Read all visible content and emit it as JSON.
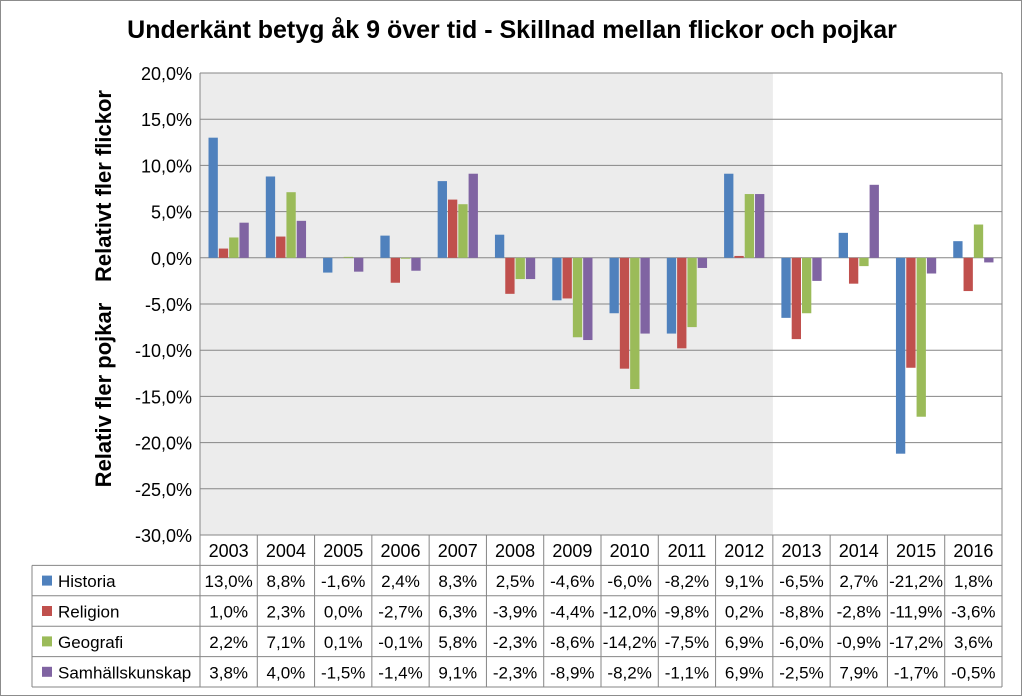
{
  "chart_data": {
    "type": "bar",
    "title": "Underkänt betyg åk 9 över tid - Skillnad mellan flickor och pojkar",
    "ylabel_top": "Relativt fler flickor",
    "ylabel_bottom": "Relativ fler pojkar",
    "ylim": [
      -30,
      20
    ],
    "ytick_step": 5,
    "yticks": [
      "20,0%",
      "15,0%",
      "10,0%",
      "5,0%",
      "0,0%",
      "-5,0%",
      "-10,0%",
      "-15,0%",
      "-20,0%",
      "-25,0%",
      "-30,0%"
    ],
    "categories": [
      "2003",
      "2004",
      "2005",
      "2006",
      "2007",
      "2008",
      "2009",
      "2010",
      "2011",
      "2012",
      "2013",
      "2014",
      "2015",
      "2016"
    ],
    "shaded_categories": [
      "2003",
      "2004",
      "2005",
      "2006",
      "2007",
      "2008",
      "2009",
      "2010",
      "2011",
      "2012"
    ],
    "grid": true,
    "legend": "data-table",
    "series": [
      {
        "name": "Historia",
        "color": "#4f81bd",
        "values": [
          13.0,
          8.8,
          -1.6,
          2.4,
          8.3,
          2.5,
          -4.6,
          -6.0,
          -8.2,
          9.1,
          -6.5,
          2.7,
          -21.2,
          1.8
        ],
        "labels": [
          "13,0%",
          "8,8%",
          "-1,6%",
          "2,4%",
          "8,3%",
          "2,5%",
          "-4,6%",
          "-6,0%",
          "-8,2%",
          "9,1%",
          "-6,5%",
          "2,7%",
          "-21,2%",
          "1,8%"
        ]
      },
      {
        "name": "Religion",
        "color": "#c0504d",
        "values": [
          1.0,
          2.3,
          0.0,
          -2.7,
          6.3,
          -3.9,
          -4.4,
          -12.0,
          -9.8,
          0.2,
          -8.8,
          -2.8,
          -11.9,
          -3.6
        ],
        "labels": [
          "1,0%",
          "2,3%",
          "0,0%",
          "-2,7%",
          "6,3%",
          "-3,9%",
          "-4,4%",
          "-12,0%",
          "-9,8%",
          "0,2%",
          "-8,8%",
          "-2,8%",
          "-11,9%",
          "-3,6%"
        ]
      },
      {
        "name": "Geografi",
        "color": "#9bbb59",
        "values": [
          2.2,
          7.1,
          0.1,
          -0.1,
          5.8,
          -2.3,
          -8.6,
          -14.2,
          -7.5,
          6.9,
          -6.0,
          -0.9,
          -17.2,
          3.6
        ],
        "labels": [
          "2,2%",
          "7,1%",
          "0,1%",
          "-0,1%",
          "5,8%",
          "-2,3%",
          "-8,6%",
          "-14,2%",
          "-7,5%",
          "6,9%",
          "-6,0%",
          "-0,9%",
          "-17,2%",
          "3,6%"
        ]
      },
      {
        "name": "Samhällskunskap",
        "color": "#8064a2",
        "values": [
          3.8,
          4.0,
          -1.5,
          -1.4,
          9.1,
          -2.3,
          -8.9,
          -8.2,
          -1.1,
          6.9,
          -2.5,
          7.9,
          -1.7,
          -0.5
        ],
        "labels": [
          "3,8%",
          "4,0%",
          "-1,5%",
          "-1,4%",
          "9,1%",
          "-2,3%",
          "-8,9%",
          "-8,2%",
          "-1,1%",
          "6,9%",
          "-2,5%",
          "7,9%",
          "-1,7%",
          "-0,5%"
        ]
      }
    ]
  }
}
